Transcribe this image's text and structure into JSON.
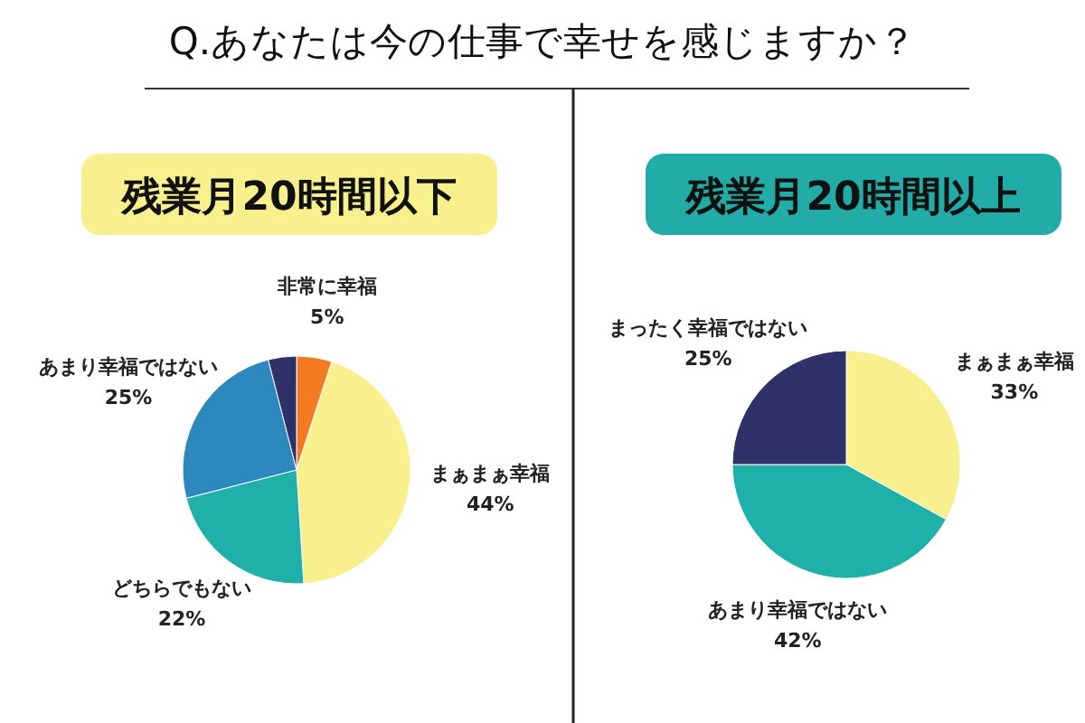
{
  "chart_data": [
    {
      "type": "pie",
      "title": "Q.あなたは今の仕事で幸せを感じますか？",
      "subtitle": "残業月20時間以下",
      "categories": [
        "非常に幸福",
        "まぁまぁ幸福",
        "どちらでもない",
        "あまり幸福ではない",
        null
      ],
      "values": [
        5,
        44,
        22,
        25,
        4
      ],
      "value_labels": [
        "5%",
        "44%",
        "22%",
        "25%",
        null
      ],
      "colors": [
        "#f47a22",
        "#f8f08c",
        "#20b0aa",
        "#2c88bd",
        "#2e3268"
      ]
    },
    {
      "type": "pie",
      "subtitle": "残業月20時間以上",
      "categories": [
        "まぁまぁ幸福",
        "あまり幸福ではない",
        "まったく幸福ではない"
      ],
      "values": [
        33,
        42,
        25
      ],
      "value_labels": [
        "33%",
        "42%",
        "25%"
      ],
      "colors": [
        "#f8f08c",
        "#20b0aa",
        "#2e3268"
      ]
    }
  ]
}
